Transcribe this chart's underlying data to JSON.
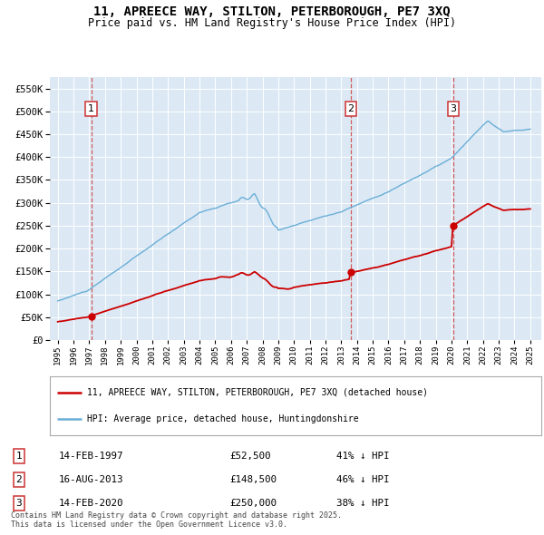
{
  "title": "11, APREECE WAY, STILTON, PETERBOROUGH, PE7 3XQ",
  "subtitle": "Price paid vs. HM Land Registry's House Price Index (HPI)",
  "background_color": "#dce9f5",
  "grid_color": "#ffffff",
  "hpi_color": "#6aaed6",
  "price_color": "#cc0000",
  "vline_color": "#d04040",
  "sales": [
    {
      "date_num": 1997.12,
      "price": 52500,
      "label": "1"
    },
    {
      "date_num": 2013.62,
      "price": 148500,
      "label": "2"
    },
    {
      "date_num": 2020.12,
      "price": 250000,
      "label": "3"
    }
  ],
  "sale_labels": [
    {
      "num": "1",
      "date": "14-FEB-1997",
      "price": "£52,500",
      "pct": "41% ↓ HPI"
    },
    {
      "num": "2",
      "date": "16-AUG-2013",
      "price": "£148,500",
      "pct": "46% ↓ HPI"
    },
    {
      "num": "3",
      "date": "14-FEB-2020",
      "price": "£250,000",
      "pct": "38% ↓ HPI"
    }
  ],
  "legend_label_red": "11, APREECE WAY, STILTON, PETERBOROUGH, PE7 3XQ (detached house)",
  "legend_label_blue": "HPI: Average price, detached house, Huntingdonshire",
  "footer": "Contains HM Land Registry data © Crown copyright and database right 2025.\nThis data is licensed under the Open Government Licence v3.0.",
  "ylim": [
    0,
    575000
  ],
  "yticks": [
    0,
    50000,
    100000,
    150000,
    200000,
    250000,
    300000,
    350000,
    400000,
    450000,
    500000,
    550000
  ],
  "xlim_start": 1994.5,
  "xlim_end": 2025.7
}
